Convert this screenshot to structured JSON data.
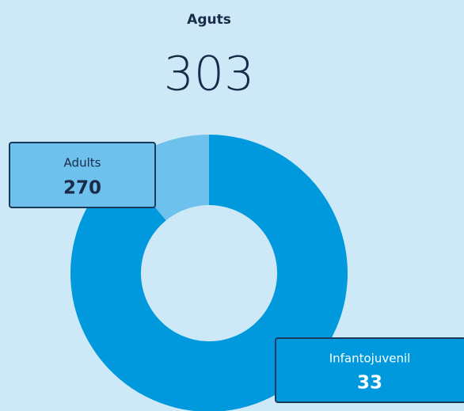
{
  "chart_data": {
    "type": "donut",
    "title": "Aguts",
    "total": 303,
    "categories": [
      "Adults",
      "Infantojuvenil"
    ],
    "values": [
      270,
      33
    ],
    "colors": [
      "#0099dd",
      "#6ec1ec"
    ]
  }
}
